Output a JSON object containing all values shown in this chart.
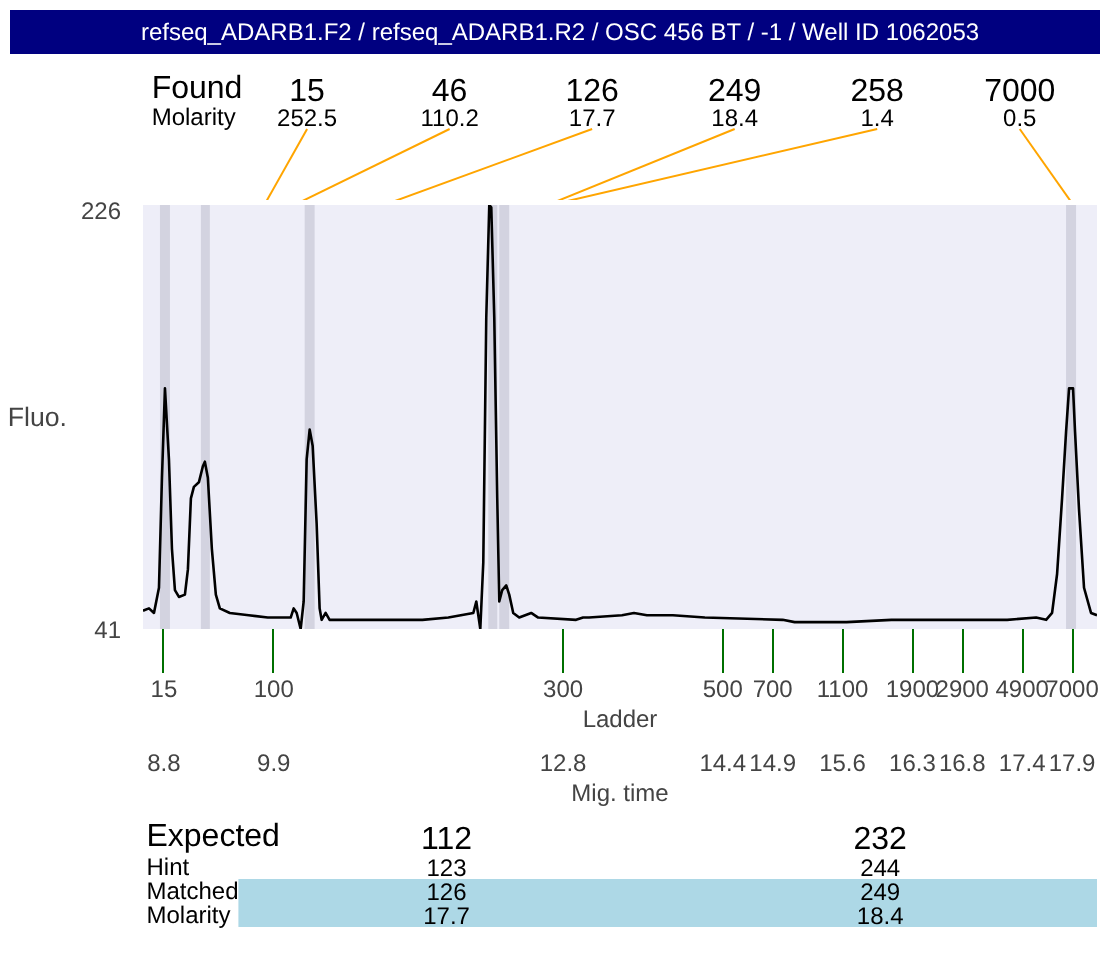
{
  "chart_data": {
    "type": "line",
    "title": "refseq_ADARB1.F2 / refseq_ADARB1.R2 / OSC 456 BT / -1 / Well ID 1062053",
    "xlabel": "Ladder\nMig. time",
    "ylabel": "Fluo.",
    "xlim": [
      8.59,
      18.15
    ],
    "ylim": [
      41,
      226
    ],
    "yticks": [
      41,
      226
    ],
    "xticks": [
      8.8,
      9.9,
      12.8,
      14.4,
      14.9,
      15.6,
      16.3,
      16.8,
      17.4,
      17.9
    ],
    "series": [
      {
        "color": "#000000",
        "x": [
          8.59,
          8.65,
          8.7,
          8.75,
          8.78,
          8.81,
          8.85,
          8.88,
          8.91,
          8.95,
          9.01,
          9.04,
          9.07,
          9.1,
          9.15,
          9.19,
          9.21,
          9.24,
          9.28,
          9.32,
          9.36,
          9.46,
          9.65,
          9.84,
          10.07,
          10.1,
          10.13,
          10.17,
          10.2,
          10.23,
          10.26,
          10.29,
          10.33,
          10.36,
          10.38,
          10.42,
          10.46,
          10.74,
          11.39,
          11.65,
          11.9,
          11.93,
          11.96,
          11.97,
          12.0,
          12.03,
          12.06,
          12.08,
          12.11,
          12.14,
          12.16,
          12.19,
          12.23,
          12.26,
          12.3,
          12.36,
          12.48,
          12.55,
          12.93,
          13.0,
          13.06,
          13.39,
          13.51,
          13.64,
          13.9,
          14.22,
          15.0,
          15.12,
          15.64,
          16.09,
          16.6,
          17.25,
          17.54,
          17.64,
          17.7,
          17.75,
          17.8,
          17.84,
          17.87,
          17.91,
          17.93,
          17.97,
          18.02,
          18.09,
          18.15
        ],
        "values": [
          49,
          50,
          48,
          59,
          107,
          146,
          115,
          76,
          58,
          55,
          56,
          67,
          98,
          103,
          105,
          112,
          114,
          107,
          76,
          56,
          50,
          48,
          47,
          46,
          46,
          50,
          48,
          41,
          53,
          115,
          128,
          121,
          87,
          50,
          45,
          48,
          45,
          45,
          45,
          46,
          48,
          53,
          44,
          41,
          70,
          177,
          226,
          225,
          177,
          98,
          53,
          58,
          60,
          56,
          48,
          46,
          48,
          46,
          45,
          46,
          46,
          47,
          48,
          47,
          47,
          46,
          45,
          44,
          44,
          45,
          45,
          45,
          46,
          45,
          48,
          65,
          98,
          127,
          146,
          146,
          127,
          93,
          59,
          48,
          47
        ]
      }
    ],
    "bands": [
      {
        "axis": "x",
        "from": 8.76,
        "to": 8.86,
        "color": "#d3d3e0"
      },
      {
        "axis": "x",
        "from": 9.17,
        "to": 9.26,
        "color": "#d3d3e0"
      },
      {
        "axis": "x",
        "from": 10.21,
        "to": 10.31,
        "color": "#d3d3e0"
      },
      {
        "axis": "x",
        "from": 12.05,
        "to": 12.14,
        "color": "#d3d3e0"
      },
      {
        "axis": "x",
        "from": 12.16,
        "to": 12.26,
        "color": "#d3d3e0"
      },
      {
        "axis": "x",
        "from": 17.84,
        "to": 17.94,
        "color": "#d3d3e0"
      }
    ],
    "annotations": [
      "Found\nMolarity",
      "15\n252.5",
      "46\n110.2",
      "126\n17.7",
      "249\n18.4",
      "258\n1.4",
      "7000\n0.5",
      "15",
      "100",
      "300",
      "500",
      "700",
      "1100",
      "1900",
      "2900",
      "4900",
      "7000",
      "Expected\nHint\nMatched\nMolarity",
      "112\n123\n126\n17.7",
      "232\n244\n249\n18.4"
    ]
  }
}
